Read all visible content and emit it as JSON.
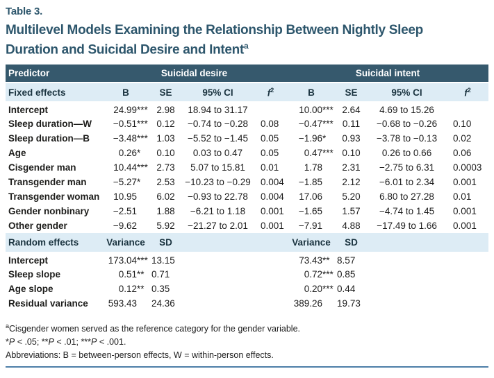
{
  "table_label": "Table 3.",
  "title_line1": "Multilevel Models Examining the Relationship Between Nightly Sleep",
  "title_line2": "Duration and Suicidal Desire and Intent",
  "title_sup": "a",
  "colors": {
    "header_bg": "#36596d",
    "band_bg": "#ddecf5",
    "title_teal": "#2d566c",
    "bottom_rule_blue": "#4d7ea8"
  },
  "header": {
    "predictor": "Predictor",
    "group1": "Suicidal desire",
    "group2": "Suicidal intent"
  },
  "fixed": {
    "label": "Fixed effects",
    "columns": [
      {
        "label": "B"
      },
      {
        "label": "SE"
      },
      {
        "label": "95% CI"
      },
      {
        "label": "f",
        "sup": "2",
        "italic": true
      },
      {
        "label": "B"
      },
      {
        "label": "SE"
      },
      {
        "label": "95% CI"
      },
      {
        "label": "f",
        "sup": "2",
        "italic": true
      }
    ],
    "rows": [
      {
        "label": "Intercept",
        "cells": [
          "24.99***",
          "2.98",
          "18.94 to 31.17",
          "",
          "10.00***",
          "2.64",
          "4.69 to 15.26",
          ""
        ]
      },
      {
        "label": "Sleep duration—W",
        "cells": [
          "−0.51***",
          "0.12",
          "−0.74 to −0.28",
          "0.08",
          "−0.47***",
          "0.11",
          "−0.68 to −0.26",
          "0.10"
        ]
      },
      {
        "label": "Sleep duration—B",
        "cells": [
          "−3.48***",
          "1.03",
          "−5.52 to −1.45",
          "0.05",
          "−1.96*",
          "0.93",
          "−3.78 to −0.13",
          "0.02"
        ]
      },
      {
        "label": "Age",
        "cells": [
          "0.26*",
          "0.10",
          "0.03 to 0.47",
          "0.05",
          "0.47***",
          "0.10",
          "0.26 to 0.66",
          "0.06"
        ]
      },
      {
        "label": "Cisgender man",
        "cells": [
          "10.44***",
          "2.73",
          "5.07 to 15.81",
          "0.01",
          "1.78",
          "2.31",
          "−2.75 to 6.31",
          "0.0003"
        ]
      },
      {
        "label": "Transgender man",
        "cells": [
          "−5.27*",
          "2.53",
          "−10.23 to −0.29",
          "0.004",
          "−1.85",
          "2.12",
          "−6.01 to 2.34",
          "0.001"
        ]
      },
      {
        "label": "Transgender woman",
        "cells": [
          "10.95",
          "6.02",
          "−0.93 to 22.78",
          "0.004",
          "17.06",
          "5.20",
          "6.80 to 27.28",
          "0.01"
        ]
      },
      {
        "label": "Gender nonbinary",
        "cells": [
          "−2.51",
          "1.88",
          "−6.21 to 1.18",
          "0.001",
          "−1.65",
          "1.57",
          "−4.74 to 1.45",
          "0.001"
        ]
      },
      {
        "label": "Other gender",
        "cells": [
          "−9.62",
          "5.92",
          "−21.27 to 2.01",
          "0.001",
          "−7.91",
          "4.88",
          "−17.49 to 1.66",
          "0.001"
        ]
      }
    ]
  },
  "random": {
    "label": "Random effects",
    "columns": [
      {
        "label": "Variance"
      },
      {
        "label": "SD"
      },
      {
        "label": ""
      },
      {
        "label": ""
      },
      {
        "label": "Variance"
      },
      {
        "label": "SD"
      },
      {
        "label": ""
      },
      {
        "label": ""
      }
    ],
    "rows": [
      {
        "label": "Intercept",
        "cells": [
          "173.04***",
          "13.15",
          "",
          "",
          "73.43**",
          "8.57",
          "",
          ""
        ]
      },
      {
        "label": "Sleep slope",
        "cells": [
          "0.51**",
          "0.71",
          "",
          "",
          "0.72***",
          "0.85",
          "",
          ""
        ]
      },
      {
        "label": "Age slope",
        "cells": [
          "0.12**",
          "0.35",
          "",
          "",
          "0.20***",
          "0.44",
          "",
          ""
        ]
      },
      {
        "label": "Residual variance",
        "cells": [
          "593.43",
          "24.36",
          "",
          "",
          "389.26",
          "19.73",
          "",
          ""
        ]
      }
    ]
  },
  "footnotes": [
    {
      "sup": "a",
      "text": "Cisgender women served as the reference category for the gender variable."
    },
    {
      "text": "*P < .05; **P < .01; ***P < .001.",
      "italic_p": true
    },
    {
      "text": "Abbreviations: B = between-person effects, W = within-person effects."
    }
  ]
}
